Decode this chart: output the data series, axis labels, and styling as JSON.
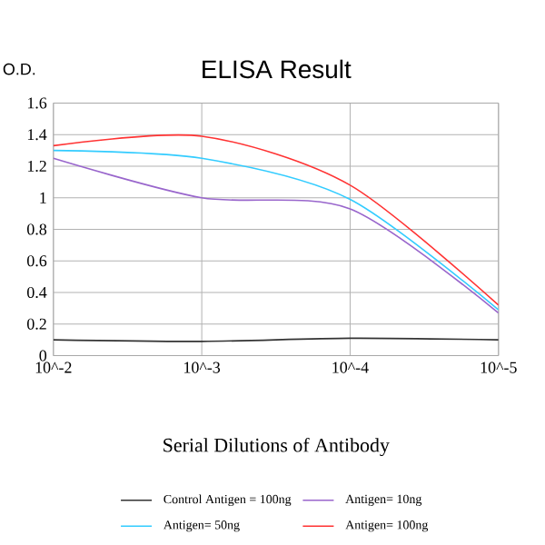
{
  "chart_data": {
    "type": "line",
    "title": "ELISA Result",
    "ylabel": "O.D.",
    "xlabel": "Serial Dilutions of Antibody",
    "categories": [
      "10^-2",
      "10^-3",
      "10^-4",
      "10^-5"
    ],
    "series": [
      {
        "name": "Control Antigen = 100ng",
        "color": "#333333",
        "values": [
          0.1,
          0.09,
          0.11,
          0.1
        ]
      },
      {
        "name": "Antigen= 10ng",
        "color": "#9966cc",
        "values": [
          1.25,
          1.0,
          0.93,
          0.27
        ]
      },
      {
        "name": "Antigen= 50ng",
        "color": "#33ccff",
        "values": [
          1.3,
          1.25,
          0.99,
          0.29
        ]
      },
      {
        "name": "Antigen= 100ng",
        "color": "#ff3333",
        "values": [
          1.33,
          1.39,
          1.08,
          0.32
        ]
      }
    ],
    "ylim": [
      0,
      1.6
    ],
    "yticks": [
      0,
      0.2,
      0.4,
      0.6,
      0.8,
      1,
      1.2,
      1.4,
      1.6
    ],
    "grid": true,
    "legend": "bottom"
  }
}
